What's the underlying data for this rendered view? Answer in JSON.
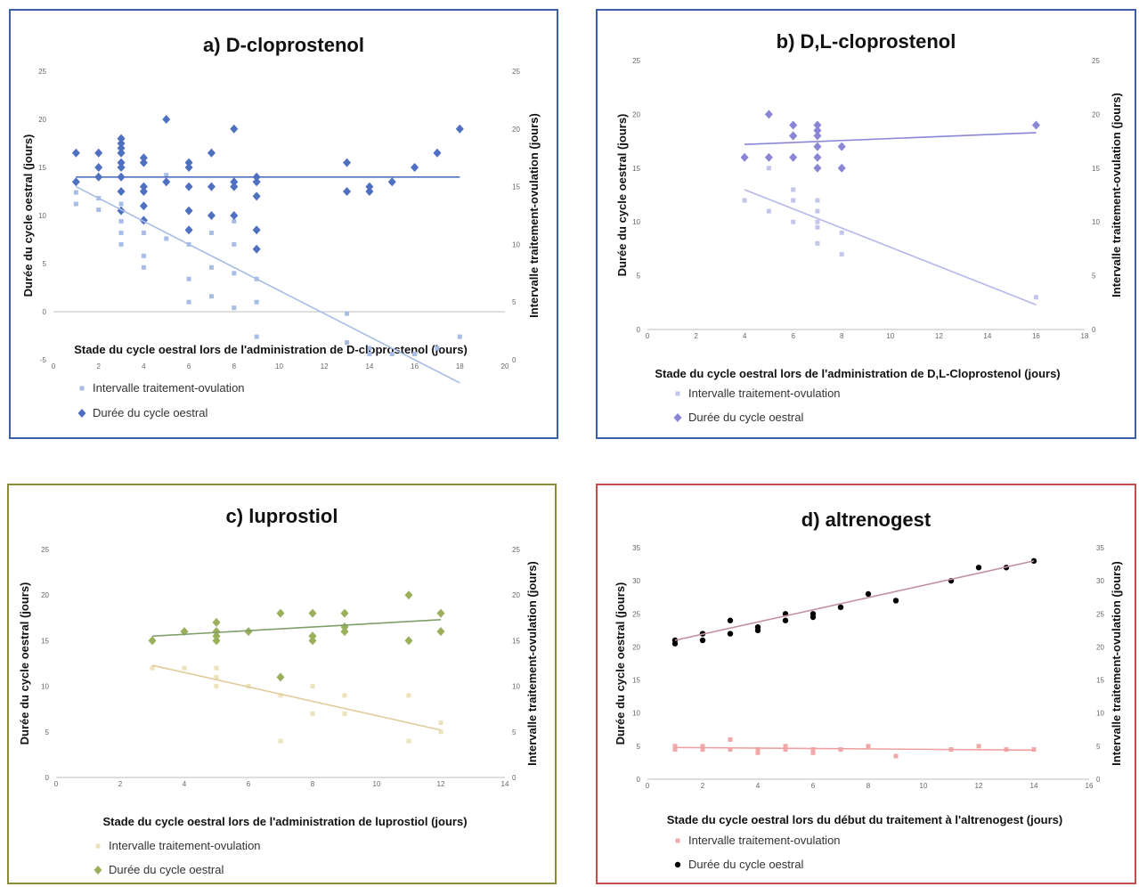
{
  "panels": [
    {
      "title": "a) D-cloprostenol",
      "border_color": "#3a5fa8",
      "xlabel": "Stade du cycle oestral lors de l'administration de D-cloprostenol (jours)",
      "ylabel": "Durée du cycle oestral (jours)",
      "ylabel_right": "Intervalle traitement-ovulation (jours)",
      "legend": [
        "Intervalle traitement-ovulation",
        "Durée du cycle oestral"
      ]
    },
    {
      "title": "b) D,L-cloprostenol",
      "border_color": "#3a5fa8",
      "xlabel": "Stade du cycle oestral lors de l'administration de D,L-Cloprostenol (jours)",
      "ylabel": "Durée du cycle oestral (jours)",
      "ylabel_right": "Intervalle traitement-ovulation (jours)",
      "legend": [
        "Intervalle traitement-ovulation",
        "Durée du cycle oestral"
      ]
    },
    {
      "title": "c) luprostiol",
      "border_color": "#8a8a3a",
      "xlabel": "Stade du cycle oestral lors de l'administration de luprostiol (jours)",
      "ylabel": "Durée du cycle oestral (jours)",
      "ylabel_right": "Intervalle traitement-ovulation (jours)",
      "legend": [
        "Intervalle traitement-ovulation",
        "Durée du cycle oestral"
      ]
    },
    {
      "title": "d) altrenogest",
      "border_color": "#c0504d",
      "xlabel": "Stade du cycle oestral lors du début du traitement à l'altrenogest (jours)",
      "ylabel": "Durée du cycle oestral (jours)",
      "ylabel_right": "Intervalle traitement-ovulation (jours)",
      "legend": [
        "Intervalle traitement-ovulation",
        "Durée du cycle oestral"
      ]
    }
  ],
  "chart_data": [
    {
      "type": "scatter",
      "title": "a) D-cloprostenol",
      "xlabel": "Stade du cycle oestral lors de l'administration de D-cloprostenol (jours)",
      "ylabel": "Durée du cycle oestral (jours)",
      "ylabel_right": "Intervalle traitement-ovulation (jours)",
      "xlim": [
        0,
        20
      ],
      "ylim": [
        -5,
        25
      ],
      "ylim_right": [
        0,
        25
      ],
      "xticks": [
        0,
        2,
        4,
        6,
        8,
        10,
        12,
        14,
        16,
        18,
        20
      ],
      "yticks": [
        -5,
        0,
        5,
        10,
        15,
        20,
        25
      ],
      "yticks_right": [
        0,
        5,
        10,
        15,
        20,
        25
      ],
      "series": [
        {
          "name": "Intervalle traitement-ovulation",
          "color": "#a7bde6",
          "marker": "square",
          "x": [
            1,
            1,
            2,
            2,
            3,
            3,
            3,
            3,
            4,
            4,
            4,
            4,
            5,
            5,
            6,
            6,
            6,
            6,
            7,
            7,
            7,
            8,
            8,
            8,
            8,
            9,
            9,
            9,
            13,
            13,
            14,
            14,
            15,
            16,
            17,
            18
          ],
          "y": [
            14.5,
            13.5,
            14,
            13,
            13.5,
            12,
            11,
            10,
            12,
            11,
            9,
            8,
            16,
            10.5,
            15,
            10,
            7,
            5,
            11,
            8,
            5.5,
            10,
            7.5,
            4.5,
            12,
            5,
            7,
            2,
            4,
            1.5,
            1,
            0.5,
            0.5,
            0.5,
            1,
            2
          ]
        },
        {
          "name": "Durée du cycle oestral",
          "color": "#4f6fc0",
          "marker": "diamond",
          "x": [
            1,
            1,
            2,
            2,
            2,
            3,
            3,
            3,
            3,
            3,
            3,
            3,
            3,
            3,
            4,
            4,
            4,
            4,
            4,
            4,
            5,
            5,
            6,
            6,
            6,
            6,
            6,
            7,
            7,
            7,
            8,
            8,
            8,
            8,
            9,
            9,
            9,
            9,
            9,
            13,
            13,
            14,
            14,
            15,
            16,
            17,
            18
          ],
          "y": [
            16.5,
            13.5,
            16.5,
            15,
            14,
            18,
            17.5,
            17,
            16.5,
            15.5,
            15,
            14,
            12.5,
            10.5,
            16,
            15.5,
            13,
            12.5,
            11,
            9.5,
            20,
            13.5,
            15.5,
            15,
            13,
            10.5,
            8.5,
            16.5,
            13,
            10,
            19,
            13.5,
            13,
            10,
            14,
            13.5,
            12,
            8.5,
            6.5,
            15.5,
            12.5,
            13,
            12.5,
            13.5,
            15,
            16.5,
            19
          ]
        }
      ],
      "trendlines": [
        {
          "series": "Durée du cycle oestral",
          "x": [
            1,
            18
          ],
          "y": [
            14,
            14
          ],
          "color": "#4f6fc0"
        },
        {
          "series": "Intervalle traitement-ovulation",
          "x": [
            1,
            18
          ],
          "y": [
            15,
            -2
          ],
          "color": "#a7bde6"
        }
      ],
      "legend_position": "bottom-left"
    },
    {
      "type": "scatter",
      "title": "b) D,L-cloprostenol",
      "xlabel": "Stade du cycle oestral lors de l'administration de D,L-Cloprostenol (jours)",
      "ylabel": "Durée du cycle oestral (jours)",
      "ylabel_right": "Intervalle traitement-ovulation (jours)",
      "xlim": [
        0,
        18
      ],
      "ylim": [
        0,
        25
      ],
      "ylim_right": [
        0,
        25
      ],
      "xticks": [
        0,
        2,
        4,
        6,
        8,
        10,
        12,
        14,
        16,
        18
      ],
      "yticks": [
        0,
        5,
        10,
        15,
        20,
        25
      ],
      "yticks_right": [
        0,
        5,
        10,
        15,
        20,
        25
      ],
      "series": [
        {
          "name": "Intervalle traitement-ovulation",
          "color": "#c3c6ec",
          "marker": "square",
          "x": [
            4,
            5,
            5,
            6,
            6,
            6,
            7,
            7,
            7,
            7,
            7,
            8,
            8,
            16
          ],
          "y": [
            12,
            15,
            11,
            13,
            12,
            10,
            12,
            11,
            10,
            9.5,
            8,
            9,
            7,
            3
          ]
        },
        {
          "name": "Durée du cycle oestral",
          "color": "#8a86d6",
          "marker": "diamond",
          "x": [
            4,
            5,
            5,
            6,
            6,
            6,
            6,
            7,
            7,
            7,
            7,
            7,
            7,
            8,
            8,
            16
          ],
          "y": [
            16,
            20,
            16,
            19,
            18,
            16,
            18,
            19,
            18.5,
            18,
            17,
            16,
            15,
            17,
            15,
            19
          ]
        }
      ],
      "trendlines": [
        {
          "series": "Durée du cycle oestral",
          "x": [
            4,
            16
          ],
          "y": [
            17.2,
            18.3
          ],
          "color": "#8a86d6"
        },
        {
          "series": "Intervalle traitement-ovulation",
          "x": [
            4,
            16
          ],
          "y": [
            13,
            2.3
          ],
          "color": "#b6b8ea"
        }
      ],
      "legend_position": "bottom-left"
    },
    {
      "type": "scatter",
      "title": "c) luprostiol",
      "xlabel": "Stade du cycle oestral lors de l'administration de luprostiol (jours)",
      "ylabel": "Durée du cycle oestral (jours)",
      "ylabel_right": "Intervalle traitement-ovulation (jours)",
      "xlim": [
        0,
        14
      ],
      "ylim": [
        0,
        25
      ],
      "ylim_right": [
        0,
        25
      ],
      "xticks": [
        0,
        2,
        4,
        6,
        8,
        10,
        12,
        14
      ],
      "yticks": [
        0,
        5,
        10,
        15,
        20,
        25
      ],
      "yticks_right": [
        0,
        5,
        10,
        15,
        20,
        25
      ],
      "series": [
        {
          "name": "Intervalle traitement-ovulation",
          "color": "#ece2bb",
          "marker": "square",
          "x": [
            3,
            4,
            5,
            5,
            5,
            6,
            7,
            7,
            8,
            8,
            9,
            9,
            11,
            11,
            12,
            12
          ],
          "y": [
            12,
            12,
            12,
            11,
            10,
            10,
            9,
            4,
            10,
            7,
            9,
            7,
            9,
            4,
            6,
            5
          ]
        },
        {
          "name": "Durée du cycle oestral",
          "color": "#9aaf5a",
          "marker": "diamond",
          "x": [
            3,
            4,
            5,
            5,
            5,
            5,
            6,
            7,
            7,
            8,
            8,
            8,
            9,
            9,
            9,
            11,
            11,
            12,
            12
          ],
          "y": [
            15,
            16,
            17,
            16,
            15.5,
            15,
            16,
            18,
            11,
            18,
            15.5,
            15,
            18,
            16.5,
            16,
            20,
            15,
            18,
            16
          ]
        }
      ],
      "trendlines": [
        {
          "series": "Durée du cycle oestral",
          "x": [
            3,
            12
          ],
          "y": [
            15.5,
            17.3
          ],
          "color": "#7fa06a"
        },
        {
          "series": "Intervalle traitement-ovulation",
          "x": [
            3,
            12
          ],
          "y": [
            12.3,
            5.2
          ],
          "color": "#e0cc9a"
        }
      ],
      "legend_position": "bottom-left"
    },
    {
      "type": "scatter",
      "title": "d) altrenogest",
      "xlabel": "Stade du cycle oestral lors du début du traitement à l'altrenogest (jours)",
      "ylabel": "Durée du cycle oestral (jours)",
      "ylabel_right": "Intervalle traitement-ovulation (jours)",
      "xlim": [
        0,
        16
      ],
      "ylim": [
        0,
        35
      ],
      "ylim_right": [
        0,
        35
      ],
      "xticks": [
        0,
        2,
        4,
        6,
        8,
        10,
        12,
        14,
        16
      ],
      "yticks": [
        0,
        5,
        10,
        15,
        20,
        25,
        30,
        35
      ],
      "yticks_right": [
        0,
        5,
        10,
        15,
        20,
        25,
        30,
        35
      ],
      "series": [
        {
          "name": "Intervalle traitement-ovulation",
          "color": "#f0a8a8",
          "marker": "square",
          "x": [
            1,
            1,
            2,
            2,
            3,
            3,
            4,
            4,
            5,
            5,
            6,
            6,
            7,
            8,
            9,
            11,
            12,
            13,
            14
          ],
          "y": [
            5,
            4.5,
            5,
            4.5,
            6,
            4.5,
            4.5,
            4,
            5,
            4.5,
            4.5,
            4,
            4.5,
            5,
            3.5,
            4.5,
            5,
            4.5,
            4.5
          ]
        },
        {
          "name": "Durée du cycle oestral",
          "color": "#000000",
          "marker": "dot",
          "x": [
            1,
            1,
            2,
            2,
            3,
            3,
            4,
            4,
            5,
            5,
            6,
            6,
            7,
            8,
            9,
            11,
            12,
            13,
            14
          ],
          "y": [
            21,
            20.5,
            22,
            21,
            24,
            22,
            23,
            22.5,
            25,
            24,
            25,
            24.5,
            26,
            28,
            27,
            30,
            32,
            32,
            33
          ]
        }
      ],
      "trendlines": [
        {
          "series": "Durée du cycle oestral",
          "x": [
            1,
            14
          ],
          "y": [
            21,
            33
          ],
          "color": "#c090a8"
        },
        {
          "series": "Intervalle traitement-ovulation",
          "x": [
            1,
            14
          ],
          "y": [
            4.8,
            4.4
          ],
          "color": "#f0a0a0"
        }
      ],
      "legend_position": "bottom-left"
    }
  ]
}
